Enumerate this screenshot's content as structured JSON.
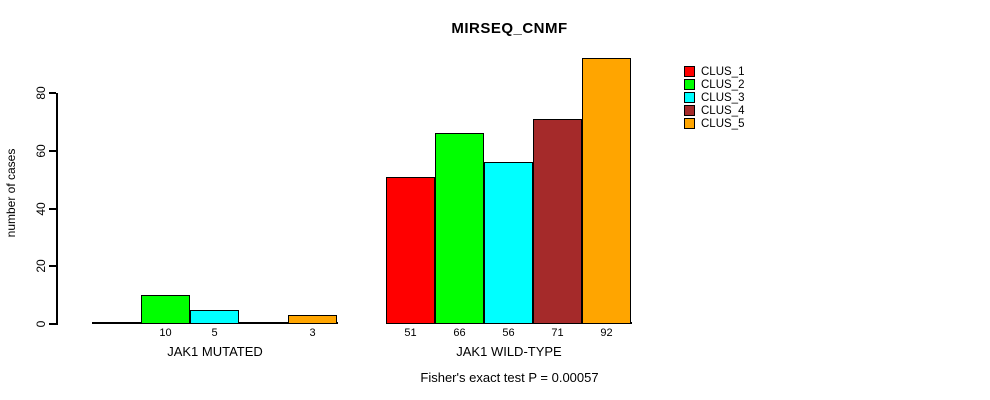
{
  "page": {
    "background": "#FFFFFF"
  },
  "chart_data": {
    "type": "bar",
    "title": "MIRSEQ_CNMF",
    "xlabel": "",
    "ylabel": "number of cases",
    "ylim": [
      0,
      92
    ],
    "yticks": [
      0,
      20,
      40,
      60,
      80
    ],
    "grid": false,
    "legend_position": "top-right",
    "legend": [
      {
        "label": "CLUS_1",
        "color": "#FF0000"
      },
      {
        "label": "CLUS_2",
        "color": "#00FF00"
      },
      {
        "label": "CLUS_3",
        "color": "#00FFFF"
      },
      {
        "label": "CLUS_4",
        "color": "#A52A2A"
      },
      {
        "label": "CLUS_5",
        "color": "#FFA500"
      }
    ],
    "series_names": [
      "CLUS_1",
      "CLUS_2",
      "CLUS_3",
      "CLUS_4",
      "CLUS_5"
    ],
    "categories": [
      "JAK1 MUTATED",
      "JAK1 WILD-TYPE"
    ],
    "groups": [
      {
        "label": "JAK1 MUTATED",
        "values": [
          0,
          10,
          5,
          0,
          3
        ],
        "bar_labels": [
          "",
          "10",
          "5",
          "",
          "3"
        ]
      },
      {
        "label": "JAK1 WILD-TYPE",
        "values": [
          51,
          66,
          56,
          71,
          92
        ],
        "bar_labels": [
          "51",
          "66",
          "56",
          "71",
          "92"
        ]
      }
    ],
    "annotation": "Fisher's exact test P = 0.00057"
  }
}
